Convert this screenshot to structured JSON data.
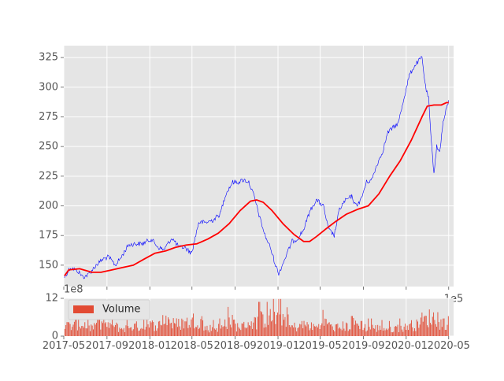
{
  "chart_data": [
    {
      "type": "line",
      "title": "",
      "xlabel": "",
      "ylabel": "",
      "x_range": [
        "2017-05-01",
        "2020-05-15"
      ],
      "ylim": [
        132,
        335
      ],
      "yticks": [
        150,
        175,
        200,
        225,
        250,
        275,
        300,
        325
      ],
      "grid": true,
      "offset_label": "",
      "corner_label": "1e5",
      "series": [
        {
          "name": "",
          "color": "#0000ff",
          "style": "thin-line",
          "points": [
            [
              "2017-05-03",
              140
            ],
            [
              "2017-05-20",
              148
            ],
            [
              "2017-06-10",
              145
            ],
            [
              "2017-06-25",
              140
            ],
            [
              "2017-07-10",
              142
            ],
            [
              "2017-08-01",
              150
            ],
            [
              "2017-08-20",
              155
            ],
            [
              "2017-09-05",
              157
            ],
            [
              "2017-09-25",
              150
            ],
            [
              "2017-10-10",
              156
            ],
            [
              "2017-11-01",
              167
            ],
            [
              "2017-11-20",
              168
            ],
            [
              "2017-12-10",
              168
            ],
            [
              "2018-01-05",
              172
            ],
            [
              "2018-01-25",
              165
            ],
            [
              "2018-02-10",
              163
            ],
            [
              "2018-03-05",
              173
            ],
            [
              "2018-03-25",
              165
            ],
            [
              "2018-04-10",
              165
            ],
            [
              "2018-04-30",
              160
            ],
            [
              "2018-05-20",
              186
            ],
            [
              "2018-06-10",
              186
            ],
            [
              "2018-06-30",
              188
            ],
            [
              "2018-07-20",
              193
            ],
            [
              "2018-08-05",
              210
            ],
            [
              "2018-08-25",
              220
            ],
            [
              "2018-09-10",
              220
            ],
            [
              "2018-09-25",
              222
            ],
            [
              "2018-10-10",
              220
            ],
            [
              "2018-10-25",
              208
            ],
            [
              "2018-11-10",
              190
            ],
            [
              "2018-11-25",
              175
            ],
            [
              "2018-12-10",
              165
            ],
            [
              "2018-12-25",
              150
            ],
            [
              "2019-01-03",
              143
            ],
            [
              "2019-01-20",
              155
            ],
            [
              "2019-02-10",
              170
            ],
            [
              "2019-02-25",
              172
            ],
            [
              "2019-03-15",
              180
            ],
            [
              "2019-04-01",
              195
            ],
            [
              "2019-04-20",
              205
            ],
            [
              "2019-05-10",
              200
            ],
            [
              "2019-05-25",
              180
            ],
            [
              "2019-06-10",
              175
            ],
            [
              "2019-06-25",
              197
            ],
            [
              "2019-07-10",
              204
            ],
            [
              "2019-07-30",
              208
            ],
            [
              "2019-08-10",
              200
            ],
            [
              "2019-08-25",
              205
            ],
            [
              "2019-09-10",
              220
            ],
            [
              "2019-09-25",
              222
            ],
            [
              "2019-10-10",
              235
            ],
            [
              "2019-10-25",
              245
            ],
            [
              "2019-11-10",
              262
            ],
            [
              "2019-11-25",
              266
            ],
            [
              "2019-12-10",
              270
            ],
            [
              "2019-12-25",
              290
            ],
            [
              "2020-01-10",
              310
            ],
            [
              "2020-01-25",
              318
            ],
            [
              "2020-02-05",
              322
            ],
            [
              "2020-02-15",
              325
            ],
            [
              "2020-02-25",
              300
            ],
            [
              "2020-03-05",
              290
            ],
            [
              "2020-03-12",
              255
            ],
            [
              "2020-03-20",
              228
            ],
            [
              "2020-03-28",
              250
            ],
            [
              "2020-04-05",
              245
            ],
            [
              "2020-04-15",
              270
            ],
            [
              "2020-04-25",
              282
            ],
            [
              "2020-05-01",
              289
            ]
          ]
        },
        {
          "name": "",
          "color": "#ff0000",
          "style": "thick-line",
          "points": [
            [
              "2017-05-03",
              141
            ],
            [
              "2017-05-15",
              146
            ],
            [
              "2017-06-15",
              147
            ],
            [
              "2017-07-20",
              144
            ],
            [
              "2017-08-15",
              144
            ],
            [
              "2017-09-15",
              146
            ],
            [
              "2017-10-15",
              148
            ],
            [
              "2017-11-15",
              150
            ],
            [
              "2017-12-15",
              155
            ],
            [
              "2018-01-15",
              160
            ],
            [
              "2018-02-15",
              162
            ],
            [
              "2018-03-15",
              165
            ],
            [
              "2018-04-15",
              167
            ],
            [
              "2018-05-15",
              168
            ],
            [
              "2018-06-15",
              172
            ],
            [
              "2018-07-15",
              177
            ],
            [
              "2018-08-15",
              185
            ],
            [
              "2018-09-15",
              196
            ],
            [
              "2018-10-15",
              204
            ],
            [
              "2018-11-01",
              205
            ],
            [
              "2018-11-20",
              203
            ],
            [
              "2018-12-15",
              196
            ],
            [
              "2019-01-15",
              185
            ],
            [
              "2019-02-15",
              176
            ],
            [
              "2019-03-15",
              170
            ],
            [
              "2019-04-01",
              170
            ],
            [
              "2019-04-20",
              174
            ],
            [
              "2019-05-15",
              180
            ],
            [
              "2019-06-15",
              187
            ],
            [
              "2019-07-15",
              193
            ],
            [
              "2019-08-15",
              197
            ],
            [
              "2019-09-15",
              200
            ],
            [
              "2019-10-15",
              210
            ],
            [
              "2019-11-15",
              225
            ],
            [
              "2019-12-15",
              238
            ],
            [
              "2020-01-15",
              255
            ],
            [
              "2020-02-15",
              275
            ],
            [
              "2020-03-01",
              284
            ],
            [
              "2020-03-20",
              285
            ],
            [
              "2020-04-10",
              285
            ],
            [
              "2020-04-25",
              287
            ],
            [
              "2020-05-01",
              287
            ]
          ]
        }
      ]
    },
    {
      "type": "bar",
      "title": "",
      "xlabel": "",
      "ylabel": "",
      "offset_label": "1e8",
      "legend": {
        "label": "Volume",
        "placement": "top-left"
      },
      "color": "#e24a33",
      "ylim": [
        0,
        12
      ],
      "yticks": [
        0,
        12
      ],
      "xticks": [
        "2017-05",
        "2017-09",
        "2018-01",
        "2018-05",
        "2018-09",
        "2019-01",
        "2019-05",
        "2019-09",
        "2020-01",
        "2020-05"
      ],
      "x_range": [
        "2017-05-01",
        "2020-05-15"
      ],
      "volume_units": "1e8",
      "monthly_volume": [
        [
          "2017-05",
          4.2
        ],
        [
          "2017-06",
          5.0
        ],
        [
          "2017-07",
          3.5
        ],
        [
          "2017-08",
          4.6
        ],
        [
          "2017-09",
          3.8
        ],
        [
          "2017-10",
          3.2
        ],
        [
          "2017-11",
          4.0
        ],
        [
          "2017-12",
          3.9
        ],
        [
          "2018-01",
          4.5
        ],
        [
          "2018-02",
          7.0
        ],
        [
          "2018-03",
          5.0
        ],
        [
          "2018-04",
          5.5
        ],
        [
          "2018-05",
          6.5
        ],
        [
          "2018-06",
          3.2
        ],
        [
          "2018-07",
          3.5
        ],
        [
          "2018-08",
          5.8
        ],
        [
          "2018-09",
          4.0
        ],
        [
          "2018-10",
          5.5
        ],
        [
          "2018-11",
          6.8
        ],
        [
          "2018-12",
          7.5
        ],
        [
          "2019-01",
          7.8
        ],
        [
          "2019-02",
          3.8
        ],
        [
          "2019-03",
          4.5
        ],
        [
          "2019-04",
          3.8
        ],
        [
          "2019-05",
          5.2
        ],
        [
          "2019-06",
          3.5
        ],
        [
          "2019-07",
          4.0
        ],
        [
          "2019-08",
          5.0
        ],
        [
          "2019-09",
          3.5
        ],
        [
          "2019-10",
          3.2
        ],
        [
          "2019-11",
          3.0
        ],
        [
          "2019-12",
          3.5
        ],
        [
          "2020-01",
          4.5
        ],
        [
          "2020-02",
          6.5
        ],
        [
          "2020-03",
          7.5
        ],
        [
          "2020-04",
          5.5
        ],
        [
          "2020-05",
          4.5
        ]
      ]
    }
  ]
}
